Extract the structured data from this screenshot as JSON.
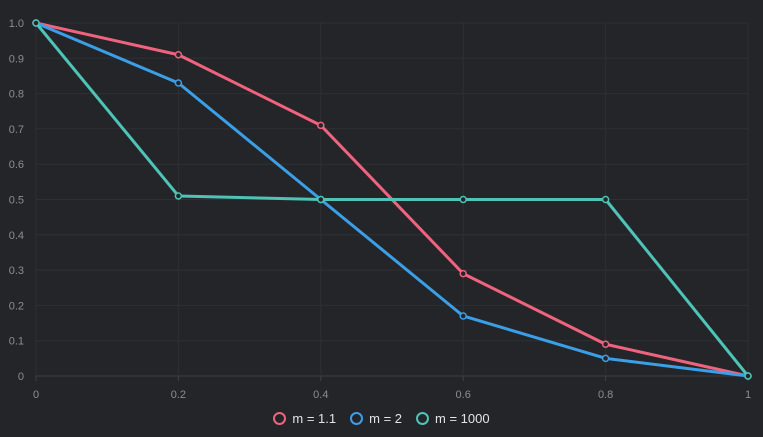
{
  "chart_data": {
    "type": "line",
    "x": [
      0,
      0.2,
      0.4,
      0.6,
      0.8,
      1
    ],
    "xticks": [
      "0",
      "0.2",
      "0.4",
      "0.6",
      "0.8",
      "1"
    ],
    "yticks": [
      "0",
      "0.1",
      "0.2",
      "0.3",
      "0.4",
      "0.5",
      "0.6",
      "0.7",
      "0.8",
      "0.9",
      "1.0"
    ],
    "xlim": [
      0,
      1
    ],
    "ylim": [
      0,
      1
    ],
    "grid": true,
    "legend_position": "bottom-center",
    "series": [
      {
        "name": "m = 1.1",
        "color": "#f0637f",
        "values": [
          1.0,
          0.91,
          0.71,
          0.29,
          0.09,
          0.0
        ]
      },
      {
        "name": "m = 2",
        "color": "#3b9fe8",
        "values": [
          1.0,
          0.83,
          0.5,
          0.17,
          0.05,
          0.0
        ]
      },
      {
        "name": "m = 1000",
        "color": "#4ec3b6",
        "values": [
          1.0,
          0.51,
          0.5,
          0.5,
          0.5,
          0.0
        ]
      }
    ]
  }
}
